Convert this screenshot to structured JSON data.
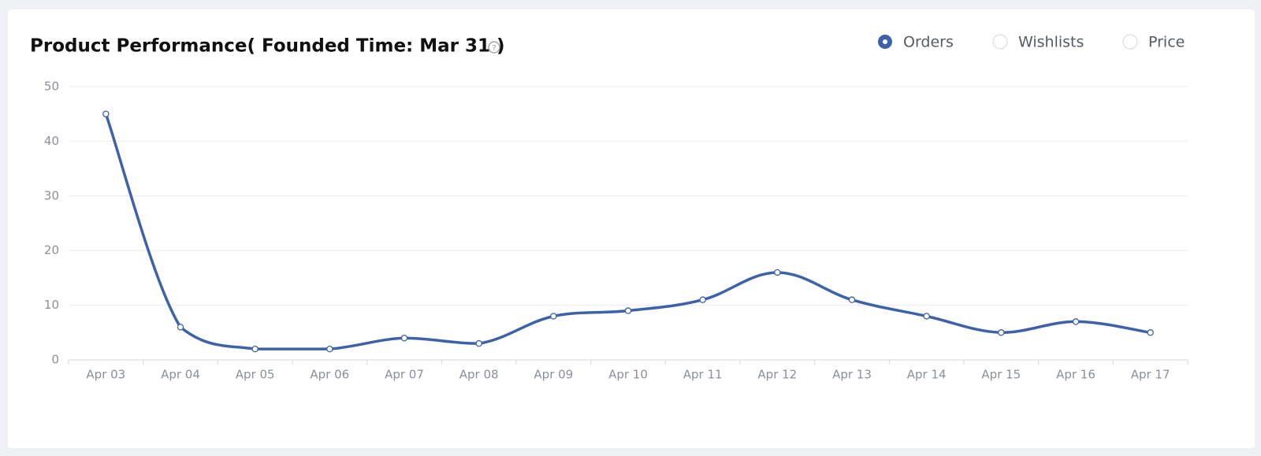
{
  "chart_data": {
    "type": "line",
    "title": "Product Performance( Founded Time: Mar 31 )",
    "categories": [
      "Apr 03",
      "Apr 04",
      "Apr 05",
      "Apr 06",
      "Apr 07",
      "Apr 08",
      "Apr 09",
      "Apr 10",
      "Apr 11",
      "Apr 12",
      "Apr 13",
      "Apr 14",
      "Apr 15",
      "Apr 16",
      "Apr 17"
    ],
    "series": [
      {
        "name": "Orders",
        "color": "#3d62aa",
        "values": [
          45,
          6,
          2,
          2,
          4,
          3,
          8,
          9,
          11,
          16,
          11,
          8,
          5,
          7,
          5
        ]
      }
    ],
    "other_metrics": [
      "Wishlists",
      "Price"
    ],
    "ylim": [
      0,
      50
    ],
    "yticks": [
      0,
      10,
      20,
      30,
      40,
      50
    ],
    "grid": true,
    "smooth": true,
    "legend": "top-right"
  }
}
